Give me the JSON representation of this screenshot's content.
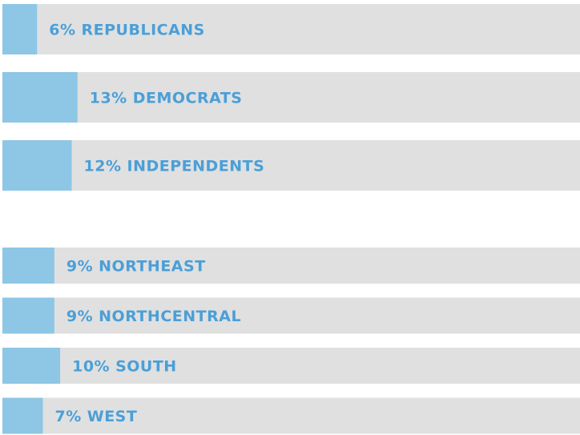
{
  "chart_data": [
    {
      "type": "bar",
      "orientation": "horizontal",
      "categories": [
        "REPUBLICANS",
        "DEMOCRATS",
        "INDEPENDENTS"
      ],
      "values": [
        6,
        13,
        12
      ],
      "value_labels": [
        "6%",
        "13%",
        "12%"
      ],
      "xlim": [
        0,
        100
      ],
      "color": "#8ec6e6"
    },
    {
      "type": "bar",
      "orientation": "horizontal",
      "categories": [
        "NORTHEAST",
        "NORTHCENTRAL",
        "SOUTH",
        "WEST"
      ],
      "values": [
        9,
        9,
        10,
        7
      ],
      "value_labels": [
        "9%",
        "9%",
        "10%",
        "7%"
      ],
      "xlim": [
        0,
        100
      ],
      "color": "#8ec6e6"
    }
  ]
}
